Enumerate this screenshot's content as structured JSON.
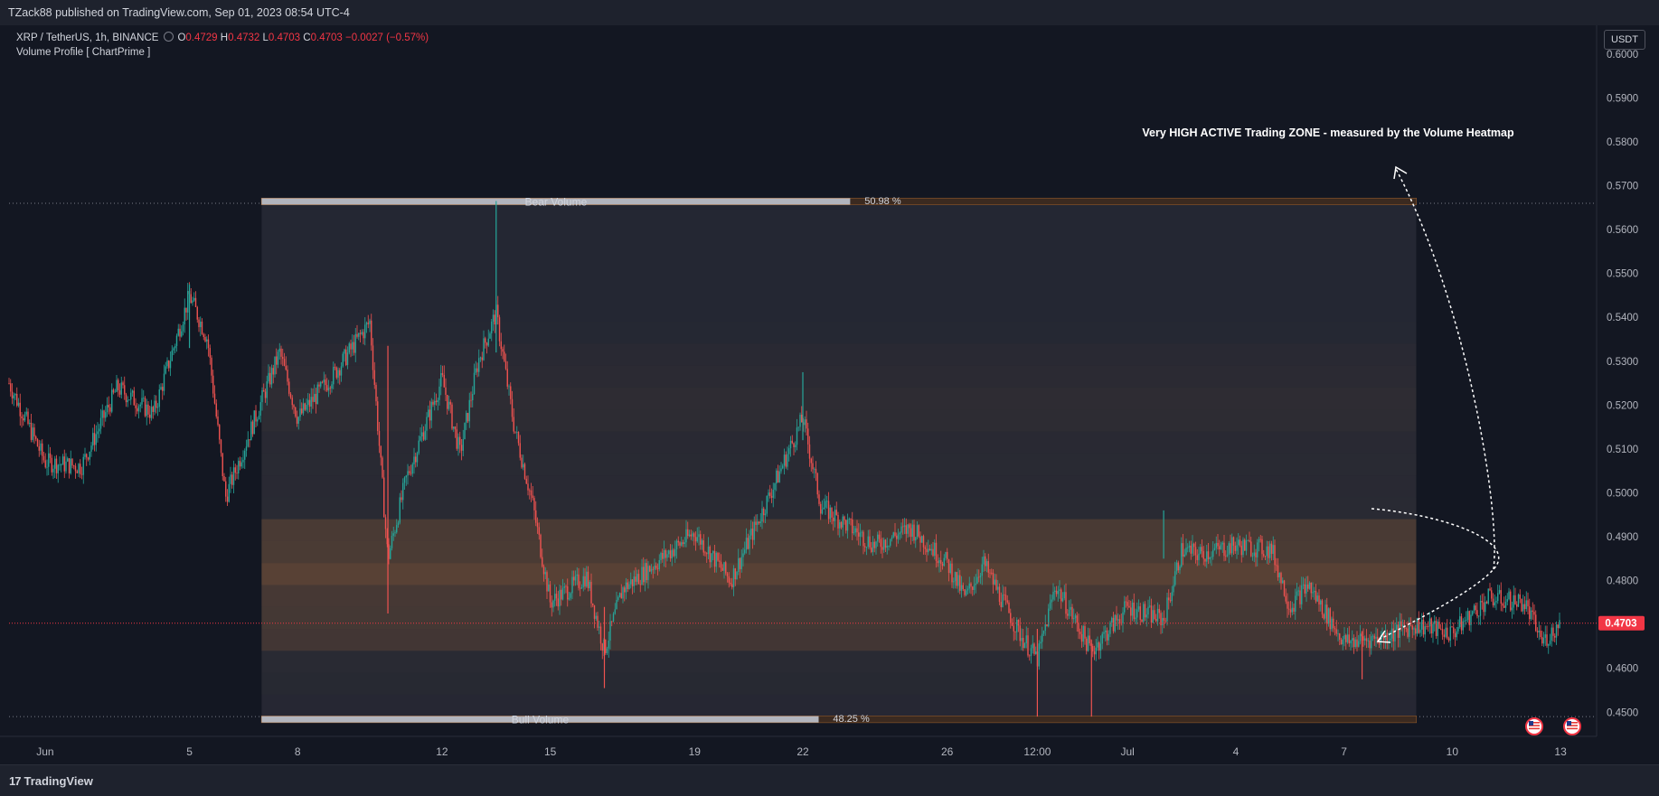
{
  "header": {
    "published_by": "TZack88 published on TradingView.com, Sep 01, 2023 08:54 UTC-4"
  },
  "legend": {
    "symbol": "XRP / TetherUS, 1h, BINANCE",
    "ohlc": [
      {
        "key": "O",
        "value": "0.4729"
      },
      {
        "key": "H",
        "value": "0.4732"
      },
      {
        "key": "L",
        "value": "0.4703"
      },
      {
        "key": "C",
        "value": "0.4703"
      }
    ],
    "change": "−0.0027 (−0.57%)",
    "indicator": "Volume Profile [ ChartPrime ]"
  },
  "price_axis": {
    "currency_button": "USDT",
    "last_price_label": "0.4703"
  },
  "footer": {
    "brand": "TradingView"
  },
  "colors": {
    "background": "#131722",
    "panel": "#1e222d",
    "up_candle": "#26a69a",
    "down_candle": "#ef5350",
    "last_price": "#f23645",
    "heat_orange": "#8a5a37",
    "bear_bar": "#d1d4dc",
    "profile_border": "#a0622e"
  },
  "chart_data": {
    "type": "candlestick",
    "symbol": "XRP / TetherUS",
    "interval": "1h",
    "exchange": "BINANCE",
    "ylim": [
      0.4445,
      0.6045
    ],
    "y_ticks": [
      "0.6000",
      "0.5900",
      "0.5800",
      "0.5700",
      "0.5600",
      "0.5500",
      "0.5400",
      "0.5300",
      "0.5200",
      "0.5100",
      "0.5000",
      "0.4900",
      "0.4800",
      "0.4600",
      "0.4500"
    ],
    "x_ticks": [
      "Jun",
      "5",
      "8",
      "12",
      "15",
      "19",
      "22",
      "26",
      "12:00",
      "Jul",
      "4",
      "7",
      "10",
      "13"
    ],
    "last_price": 0.4703,
    "price_path": [
      {
        "t": "May 31",
        "p": 0.525
      },
      {
        "t": "Jun 1",
        "p": 0.507
      },
      {
        "t": "Jun 2",
        "p": 0.506
      },
      {
        "t": "Jun 3",
        "p": 0.524
      },
      {
        "t": "Jun 4",
        "p": 0.518
      },
      {
        "t": "Jun 5",
        "p": 0.545
      },
      {
        "t": "Jun 5 12:00",
        "p": 0.535
      },
      {
        "t": "Jun 6",
        "p": 0.499
      },
      {
        "t": "Jun 7",
        "p": 0.521
      },
      {
        "t": "Jun 7 12:00",
        "p": 0.532
      },
      {
        "t": "Jun 8",
        "p": 0.517
      },
      {
        "t": "Jun 9",
        "p": 0.527
      },
      {
        "t": "Jun 10",
        "p": 0.539
      },
      {
        "t": "Jun 10 12:00",
        "p": 0.485
      },
      {
        "t": "Jun 11",
        "p": 0.503
      },
      {
        "t": "Jun 12",
        "p": 0.526
      },
      {
        "t": "Jun 12 12:00",
        "p": 0.509
      },
      {
        "t": "Jun 13",
        "p": 0.53
      },
      {
        "t": "Jun 13 12:00",
        "p": 0.541
      },
      {
        "t": "Jun 14",
        "p": 0.515
      },
      {
        "t": "Jun 14 12:00",
        "p": 0.498
      },
      {
        "t": "Jun 15",
        "p": 0.475
      },
      {
        "t": "Jun 16",
        "p": 0.481
      },
      {
        "t": "Jun 16 12:00",
        "p": 0.464
      },
      {
        "t": "Jun 17",
        "p": 0.478
      },
      {
        "t": "Jun 19",
        "p": 0.491
      },
      {
        "t": "Jun 20",
        "p": 0.48
      },
      {
        "t": "Jun 21",
        "p": 0.498
      },
      {
        "t": "Jun 22",
        "p": 0.517
      },
      {
        "t": "Jun 22 12:00",
        "p": 0.497
      },
      {
        "t": "Jun 23",
        "p": 0.494
      },
      {
        "t": "Jun 24",
        "p": 0.488
      },
      {
        "t": "Jun 25",
        "p": 0.492
      },
      {
        "t": "Jun 26",
        "p": 0.484
      },
      {
        "t": "Jun 26 12:00",
        "p": 0.476
      },
      {
        "t": "Jun 27",
        "p": 0.484
      },
      {
        "t": "Jun 28",
        "p": 0.468
      },
      {
        "t": "Jun 28 12:00",
        "p": 0.462
      },
      {
        "t": "Jun 29",
        "p": 0.479
      },
      {
        "t": "Jun 30",
        "p": 0.464
      },
      {
        "t": "Jul 1",
        "p": 0.474
      },
      {
        "t": "Jul 2",
        "p": 0.471
      },
      {
        "t": "Jul 2 12:00",
        "p": 0.487
      },
      {
        "t": "Jul 3",
        "p": 0.486
      },
      {
        "t": "Jul 4",
        "p": 0.488
      },
      {
        "t": "Jul 5",
        "p": 0.487
      },
      {
        "t": "Jul 5 12:00",
        "p": 0.474
      },
      {
        "t": "Jul 6",
        "p": 0.479
      },
      {
        "t": "Jul 7",
        "p": 0.466
      },
      {
        "t": "Jul 8",
        "p": 0.467
      },
      {
        "t": "Jul 9",
        "p": 0.47
      },
      {
        "t": "Jul 10",
        "p": 0.468
      },
      {
        "t": "Jul 11",
        "p": 0.476
      },
      {
        "t": "Jul 12",
        "p": 0.475
      },
      {
        "t": "Jul 12 12:00",
        "p": 0.466
      },
      {
        "t": "Jul 13",
        "p": 0.4703
      }
    ],
    "volume_profile": {
      "name": "Volume Profile [ ChartPrime ]",
      "top_price": 0.566,
      "bottom_price": 0.449,
      "range_start": "Jun 7",
      "range_end": "Jul 9",
      "bear_label": "Bear Volume",
      "bear_pct": "50.98 %",
      "bear_fraction": 0.5098,
      "bull_label": "Bull Volume",
      "bull_pct": "48.25 %",
      "bull_fraction": 0.4825,
      "heat_rows": [
        {
          "lo": 0.449,
          "hi": 0.454,
          "intensity": 0.05
        },
        {
          "lo": 0.454,
          "hi": 0.459,
          "intensity": 0.08
        },
        {
          "lo": 0.459,
          "hi": 0.464,
          "intensity": 0.12
        },
        {
          "lo": 0.464,
          "hi": 0.469,
          "intensity": 0.55
        },
        {
          "lo": 0.469,
          "hi": 0.474,
          "intensity": 0.6
        },
        {
          "lo": 0.474,
          "hi": 0.479,
          "intensity": 0.62
        },
        {
          "lo": 0.479,
          "hi": 0.484,
          "intensity": 0.95
        },
        {
          "lo": 0.484,
          "hi": 0.489,
          "intensity": 0.7
        },
        {
          "lo": 0.489,
          "hi": 0.494,
          "intensity": 0.68
        },
        {
          "lo": 0.494,
          "hi": 0.499,
          "intensity": 0.12
        },
        {
          "lo": 0.499,
          "hi": 0.504,
          "intensity": 0.1
        },
        {
          "lo": 0.504,
          "hi": 0.509,
          "intensity": 0.12
        },
        {
          "lo": 0.509,
          "hi": 0.514,
          "intensity": 0.1
        },
        {
          "lo": 0.514,
          "hi": 0.519,
          "intensity": 0.18
        },
        {
          "lo": 0.519,
          "hi": 0.524,
          "intensity": 0.2
        },
        {
          "lo": 0.524,
          "hi": 0.529,
          "intensity": 0.15
        },
        {
          "lo": 0.529,
          "hi": 0.534,
          "intensity": 0.1
        },
        {
          "lo": 0.534,
          "hi": 0.539,
          "intensity": 0.06
        },
        {
          "lo": 0.539,
          "hi": 0.566,
          "intensity": 0.03
        }
      ]
    },
    "reference_lines": [
      0.566,
      0.449
    ],
    "annotation": {
      "text": "Very HIGH ACTIVE Trading ZONE - measured by the Volume Heatmap",
      "type": "dashed arrow"
    },
    "event_markers": [
      "us-flag-icon",
      "us-flag-icon"
    ]
  }
}
